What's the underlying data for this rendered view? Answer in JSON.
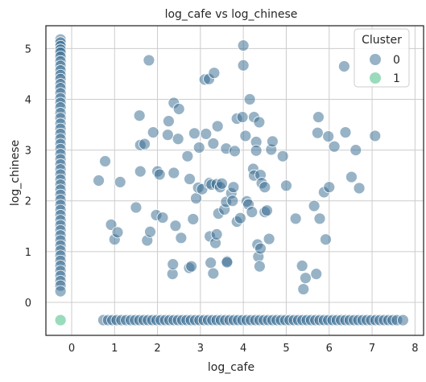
{
  "chart_data": {
    "type": "scatter",
    "title": "log_cafe vs log_chinese",
    "xlabel": "log_cafe",
    "ylabel": "log_chinese",
    "xlim": [
      -0.6,
      8.2
    ],
    "ylim": [
      -0.65,
      5.45
    ],
    "xticks": [
      0,
      1,
      2,
      3,
      4,
      5,
      6,
      7,
      8
    ],
    "yticks": [
      0,
      1,
      2,
      3,
      4,
      5
    ],
    "grid": true,
    "legend": {
      "title": "Cluster",
      "placement": "top-right",
      "entries": [
        "0",
        "1"
      ]
    },
    "colors": {
      "0": "#31688e",
      "1": "#35b779"
    },
    "series": [
      {
        "name": "0",
        "points": [
          [
            -0.26,
            5.18
          ],
          [
            -0.26,
            5.12
          ],
          [
            -0.26,
            5.05
          ],
          [
            -0.26,
            4.98
          ],
          [
            -0.26,
            4.92
          ],
          [
            -0.26,
            4.84
          ],
          [
            -0.26,
            4.75
          ],
          [
            -0.26,
            4.66
          ],
          [
            -0.26,
            4.57
          ],
          [
            -0.26,
            4.48
          ],
          [
            -0.26,
            4.4
          ],
          [
            -0.26,
            4.3
          ],
          [
            -0.26,
            4.22
          ],
          [
            -0.26,
            4.12
          ],
          [
            -0.26,
            4.02
          ],
          [
            -0.26,
            3.93
          ],
          [
            -0.26,
            3.84
          ],
          [
            -0.26,
            3.73
          ],
          [
            -0.26,
            3.63
          ],
          [
            -0.26,
            3.52
          ],
          [
            -0.26,
            3.42
          ],
          [
            -0.26,
            3.32
          ],
          [
            -0.26,
            3.22
          ],
          [
            -0.26,
            3.12
          ],
          [
            -0.26,
            3.02
          ],
          [
            -0.26,
            2.92
          ],
          [
            -0.26,
            2.82
          ],
          [
            -0.26,
            2.72
          ],
          [
            -0.26,
            2.62
          ],
          [
            -0.26,
            2.52
          ],
          [
            -0.26,
            2.42
          ],
          [
            -0.26,
            2.32
          ],
          [
            -0.26,
            2.22
          ],
          [
            -0.26,
            2.12
          ],
          [
            -0.26,
            2.02
          ],
          [
            -0.26,
            1.92
          ],
          [
            -0.26,
            1.82
          ],
          [
            -0.26,
            1.72
          ],
          [
            -0.26,
            1.62
          ],
          [
            -0.26,
            1.52
          ],
          [
            -0.26,
            1.42
          ],
          [
            -0.26,
            1.32
          ],
          [
            -0.26,
            1.22
          ],
          [
            -0.26,
            1.12
          ],
          [
            -0.26,
            1.02
          ],
          [
            -0.26,
            0.92
          ],
          [
            -0.26,
            0.82
          ],
          [
            -0.26,
            0.72
          ],
          [
            -0.26,
            0.62
          ],
          [
            -0.26,
            0.52
          ],
          [
            -0.26,
            0.42
          ],
          [
            -0.26,
            0.33
          ],
          [
            -0.26,
            0.22
          ],
          [
            0.63,
            2.4
          ],
          [
            0.78,
            2.78
          ],
          [
            0.92,
            1.53
          ],
          [
            1.0,
            1.24
          ],
          [
            1.07,
            1.38
          ],
          [
            1.13,
            2.37
          ],
          [
            1.5,
            1.87
          ],
          [
            1.58,
            3.68
          ],
          [
            1.6,
            2.58
          ],
          [
            1.6,
            3.1
          ],
          [
            1.7,
            3.12
          ],
          [
            1.76,
            1.22
          ],
          [
            1.8,
            4.77
          ],
          [
            1.83,
            1.39
          ],
          [
            1.9,
            3.35
          ],
          [
            1.97,
            1.72
          ],
          [
            2.0,
            2.58
          ],
          [
            2.05,
            2.52
          ],
          [
            2.12,
            1.67
          ],
          [
            2.24,
            3.3
          ],
          [
            2.26,
            3.57
          ],
          [
            2.35,
            0.56
          ],
          [
            2.36,
            0.75
          ],
          [
            2.38,
            2.55
          ],
          [
            2.38,
            3.93
          ],
          [
            2.42,
            1.51
          ],
          [
            2.48,
            3.22
          ],
          [
            2.5,
            3.81
          ],
          [
            2.55,
            1.27
          ],
          [
            2.7,
            2.88
          ],
          [
            2.74,
            0.68
          ],
          [
            2.75,
            2.43
          ],
          [
            2.79,
            0.71
          ],
          [
            2.83,
            1.64
          ],
          [
            2.86,
            3.33
          ],
          [
            2.9,
            2.05
          ],
          [
            2.95,
            2.26
          ],
          [
            2.97,
            3.05
          ],
          [
            3.04,
            2.23
          ],
          [
            3.1,
            4.39
          ],
          [
            3.13,
            3.32
          ],
          [
            3.2,
            4.4
          ],
          [
            3.21,
            2.35
          ],
          [
            3.22,
            1.3
          ],
          [
            3.24,
            0.78
          ],
          [
            3.26,
            2.32
          ],
          [
            3.3,
            3.13
          ],
          [
            3.3,
            0.57
          ],
          [
            3.32,
            4.52
          ],
          [
            3.35,
            1.17
          ],
          [
            3.38,
            1.34
          ],
          [
            3.38,
            2.33
          ],
          [
            3.4,
            3.47
          ],
          [
            3.42,
            1.75
          ],
          [
            3.46,
            2.27
          ],
          [
            3.5,
            2.34
          ],
          [
            3.56,
            1.83
          ],
          [
            3.6,
            3.03
          ],
          [
            3.6,
            1.98
          ],
          [
            3.62,
            0.81
          ],
          [
            3.62,
            0.79
          ],
          [
            3.72,
            2.15
          ],
          [
            3.75,
            2.0
          ],
          [
            3.77,
            2.27
          ],
          [
            3.8,
            2.98
          ],
          [
            3.85,
            3.62
          ],
          [
            3.85,
            1.59
          ],
          [
            3.93,
            1.66
          ],
          [
            3.98,
            3.65
          ],
          [
            4.0,
            5.06
          ],
          [
            4.0,
            4.67
          ],
          [
            4.05,
            3.28
          ],
          [
            4.08,
            1.99
          ],
          [
            4.12,
            1.93
          ],
          [
            4.15,
            4.0
          ],
          [
            4.2,
            1.78
          ],
          [
            4.23,
            2.63
          ],
          [
            4.25,
            3.65
          ],
          [
            4.25,
            2.5
          ],
          [
            4.3,
            3.16
          ],
          [
            4.3,
            2.99
          ],
          [
            4.33,
            1.14
          ],
          [
            4.35,
            0.9
          ],
          [
            4.37,
            3.55
          ],
          [
            4.38,
            0.71
          ],
          [
            4.4,
            1.06
          ],
          [
            4.4,
            2.51
          ],
          [
            4.43,
            2.35
          ],
          [
            4.5,
            2.27
          ],
          [
            4.5,
            1.78
          ],
          [
            4.55,
            1.81
          ],
          [
            4.6,
            1.25
          ],
          [
            4.65,
            3.01
          ],
          [
            4.68,
            3.17
          ],
          [
            4.92,
            2.88
          ],
          [
            5.0,
            2.3
          ],
          [
            5.22,
            1.65
          ],
          [
            5.37,
            0.72
          ],
          [
            5.4,
            0.26
          ],
          [
            5.45,
            0.48
          ],
          [
            5.65,
            1.9
          ],
          [
            5.7,
            0.56
          ],
          [
            5.73,
            3.34
          ],
          [
            5.75,
            3.65
          ],
          [
            5.78,
            1.65
          ],
          [
            5.88,
            2.17
          ],
          [
            5.92,
            1.24
          ],
          [
            5.98,
            3.27
          ],
          [
            6.0,
            2.27
          ],
          [
            6.12,
            3.07
          ],
          [
            6.35,
            4.65
          ],
          [
            6.38,
            3.35
          ],
          [
            6.52,
            2.47
          ],
          [
            6.62,
            3.0
          ],
          [
            6.7,
            2.25
          ],
          [
            7.07,
            3.28
          ],
          [
            0.74,
            -0.35
          ],
          [
            0.85,
            -0.35
          ],
          [
            0.95,
            -0.35
          ],
          [
            1.05,
            -0.35
          ],
          [
            1.16,
            -0.35
          ],
          [
            1.27,
            -0.35
          ],
          [
            1.38,
            -0.35
          ],
          [
            1.48,
            -0.35
          ],
          [
            1.58,
            -0.35
          ],
          [
            1.68,
            -0.35
          ],
          [
            1.78,
            -0.35
          ],
          [
            1.88,
            -0.35
          ],
          [
            1.98,
            -0.35
          ],
          [
            2.08,
            -0.35
          ],
          [
            2.18,
            -0.35
          ],
          [
            2.28,
            -0.35
          ],
          [
            2.38,
            -0.35
          ],
          [
            2.48,
            -0.35
          ],
          [
            2.58,
            -0.35
          ],
          [
            2.68,
            -0.35
          ],
          [
            2.78,
            -0.35
          ],
          [
            2.88,
            -0.35
          ],
          [
            2.98,
            -0.35
          ],
          [
            3.08,
            -0.35
          ],
          [
            3.18,
            -0.35
          ],
          [
            3.28,
            -0.35
          ],
          [
            3.38,
            -0.35
          ],
          [
            3.48,
            -0.35
          ],
          [
            3.58,
            -0.35
          ],
          [
            3.68,
            -0.35
          ],
          [
            3.78,
            -0.35
          ],
          [
            3.88,
            -0.35
          ],
          [
            3.98,
            -0.35
          ],
          [
            4.08,
            -0.35
          ],
          [
            4.18,
            -0.35
          ],
          [
            4.28,
            -0.35
          ],
          [
            4.38,
            -0.35
          ],
          [
            4.48,
            -0.35
          ],
          [
            4.58,
            -0.35
          ],
          [
            4.68,
            -0.35
          ],
          [
            4.78,
            -0.35
          ],
          [
            4.88,
            -0.35
          ],
          [
            4.98,
            -0.35
          ],
          [
            5.08,
            -0.35
          ],
          [
            5.18,
            -0.35
          ],
          [
            5.28,
            -0.35
          ],
          [
            5.38,
            -0.35
          ],
          [
            5.48,
            -0.35
          ],
          [
            5.58,
            -0.35
          ],
          [
            5.68,
            -0.35
          ],
          [
            5.78,
            -0.35
          ],
          [
            5.88,
            -0.35
          ],
          [
            5.98,
            -0.35
          ],
          [
            6.08,
            -0.35
          ],
          [
            6.18,
            -0.35
          ],
          [
            6.28,
            -0.35
          ],
          [
            6.38,
            -0.35
          ],
          [
            6.48,
            -0.35
          ],
          [
            6.58,
            -0.35
          ],
          [
            6.68,
            -0.35
          ],
          [
            6.78,
            -0.35
          ],
          [
            6.88,
            -0.35
          ],
          [
            6.98,
            -0.35
          ],
          [
            7.08,
            -0.35
          ],
          [
            7.18,
            -0.35
          ],
          [
            7.28,
            -0.35
          ],
          [
            7.38,
            -0.35
          ],
          [
            7.48,
            -0.35
          ],
          [
            7.58,
            -0.35
          ],
          [
            7.72,
            -0.35
          ]
        ]
      },
      {
        "name": "1",
        "points": [
          [
            -0.26,
            -0.35
          ]
        ]
      }
    ]
  }
}
